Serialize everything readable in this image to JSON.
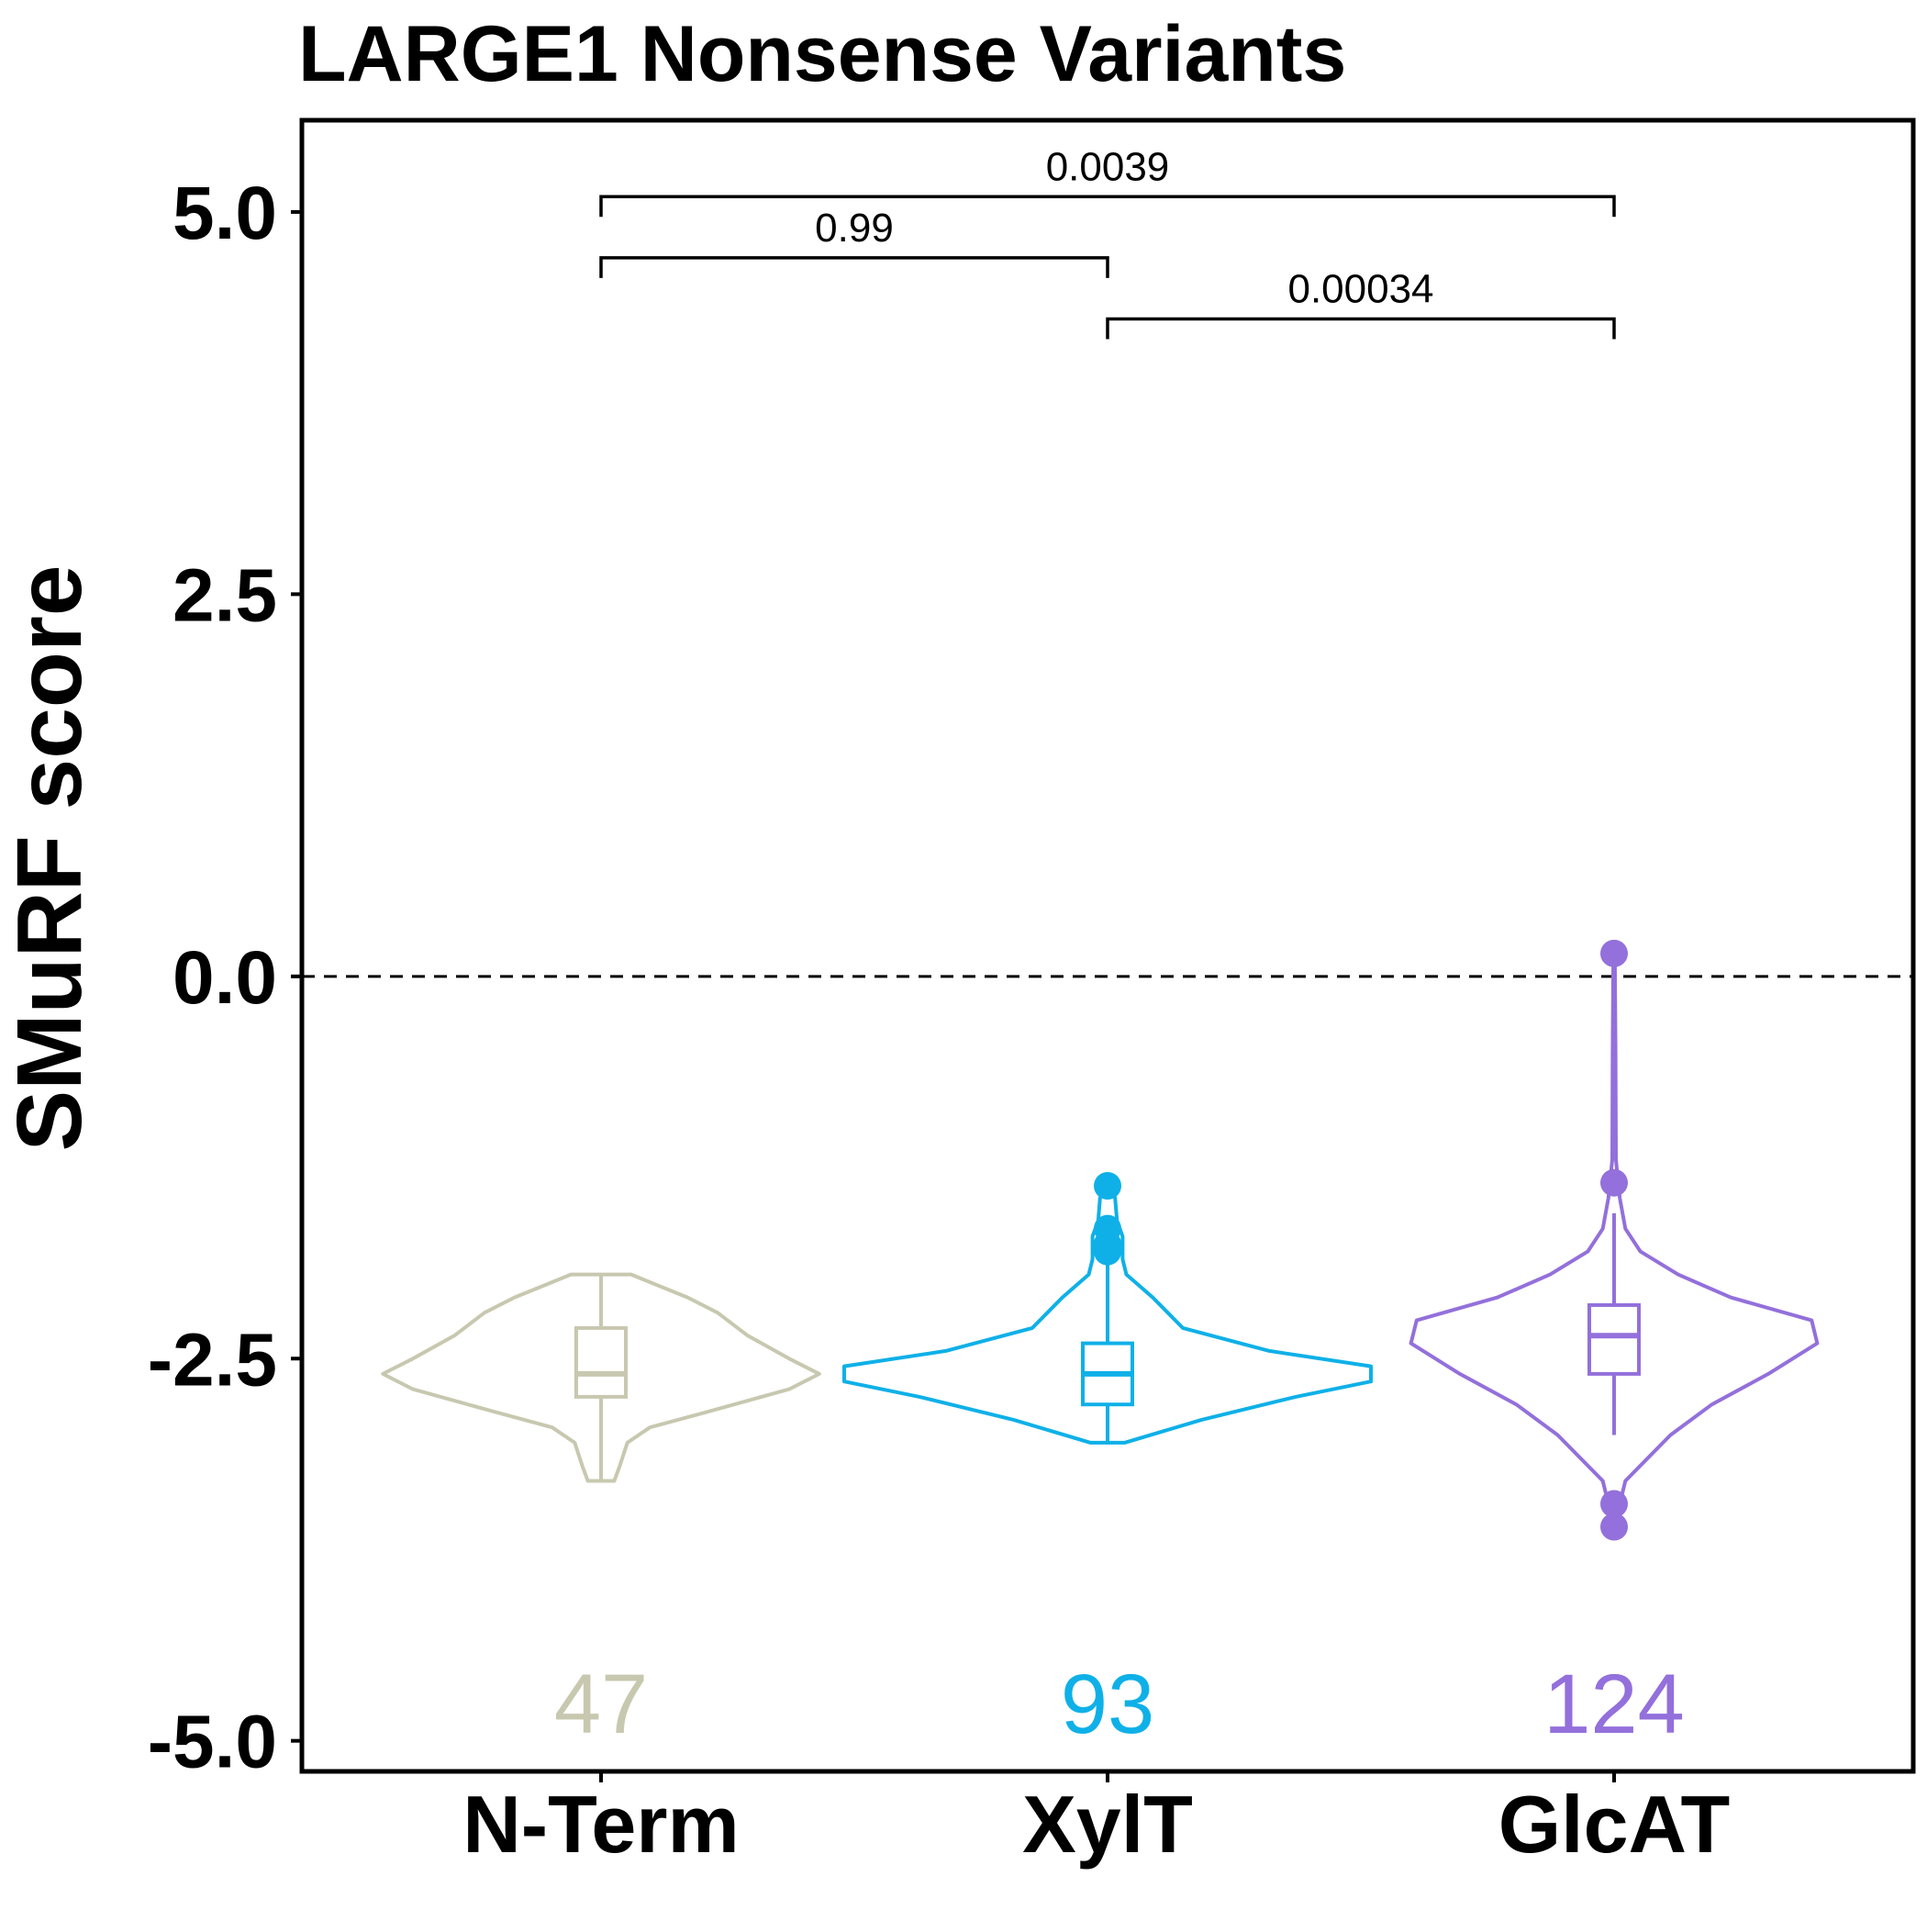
{
  "chart_data": {
    "type": "violin",
    "title": "LARGE1 Nonsense Variants",
    "xlabel": "",
    "ylabel": "SMuRF score",
    "ylim": [
      -5.2,
      5.6
    ],
    "yticks": [
      {
        "value": 5.0,
        "label": "5.0"
      },
      {
        "value": 2.5,
        "label": "2.5"
      },
      {
        "value": 0.0,
        "label": "0.0"
      },
      {
        "value": -2.5,
        "label": "-2.5"
      },
      {
        "value": -5.0,
        "label": "-5.0"
      }
    ],
    "reference_line": {
      "value": 0.0,
      "style": "dashed"
    },
    "categories": [
      "N-Term",
      "XylT",
      "GlcAT"
    ],
    "groups": [
      {
        "name": "N-Term",
        "color": "#c8c8b0",
        "n": "47",
        "min": -3.3,
        "q1": -2.75,
        "median": -2.6,
        "q3": -2.3,
        "max": -1.95,
        "outliers": [],
        "violin": [
          [
            -3.3,
            0.07
          ],
          [
            -3.2,
            0.1
          ],
          [
            -3.05,
            0.14
          ],
          [
            -2.95,
            0.26
          ],
          [
            -2.85,
            0.56
          ],
          [
            -2.7,
            1.0
          ],
          [
            -2.6,
            1.16
          ],
          [
            -2.5,
            1.0
          ],
          [
            -2.35,
            0.78
          ],
          [
            -2.2,
            0.62
          ],
          [
            -2.1,
            0.46
          ],
          [
            -2.0,
            0.26
          ],
          [
            -1.95,
            0.16
          ]
        ]
      },
      {
        "name": "XylT",
        "color": "#0fb0e8",
        "n": "93",
        "min": -3.05,
        "q1": -2.8,
        "median": -2.6,
        "q3": -2.4,
        "max": -1.75,
        "outliers": [
          -1.37,
          -1.65,
          -1.75,
          -1.8
        ],
        "violin": [
          [
            -3.05,
            0.09
          ],
          [
            -2.9,
            0.5
          ],
          [
            -2.75,
            1.0
          ],
          [
            -2.65,
            1.4
          ],
          [
            -2.55,
            1.4
          ],
          [
            -2.45,
            0.86
          ],
          [
            -2.3,
            0.4
          ],
          [
            -2.1,
            0.24
          ],
          [
            -1.95,
            0.1
          ],
          [
            -1.85,
            0.08
          ],
          [
            -1.7,
            0.08
          ],
          [
            -1.6,
            0.05
          ],
          [
            -1.45,
            0.04
          ],
          [
            -1.37,
            0.01
          ]
        ]
      },
      {
        "name": "GlcAT",
        "color": "#9370db",
        "n": "124",
        "min": -3.0,
        "q1": -2.6,
        "median": -2.35,
        "q3": -2.15,
        "max": -1.55,
        "outliers": [
          0.15,
          -1.35,
          -3.45,
          -3.6
        ],
        "violin": [
          [
            -3.6,
            0.01
          ],
          [
            -3.45,
            0.03
          ],
          [
            -3.3,
            0.06
          ],
          [
            -3.15,
            0.18
          ],
          [
            -3.0,
            0.3
          ],
          [
            -2.8,
            0.52
          ],
          [
            -2.6,
            0.82
          ],
          [
            -2.4,
            1.08
          ],
          [
            -2.25,
            1.05
          ],
          [
            -2.1,
            0.62
          ],
          [
            -1.95,
            0.34
          ],
          [
            -1.8,
            0.14
          ],
          [
            -1.65,
            0.06
          ],
          [
            -1.45,
            0.03
          ],
          [
            -1.2,
            0.01
          ],
          [
            -0.5,
            0.008
          ],
          [
            0.15,
            0.004
          ]
        ]
      }
    ],
    "comparisons": [
      {
        "from": "N-Term",
        "to": "GlcAT",
        "p": "0.0039",
        "y": 5.1
      },
      {
        "from": "N-Term",
        "to": "XylT",
        "p": "0.99",
        "y": 4.7
      },
      {
        "from": "XylT",
        "to": "GlcAT",
        "p": "0.00034",
        "y": 4.3
      }
    ],
    "grid": false,
    "legend": "none"
  }
}
